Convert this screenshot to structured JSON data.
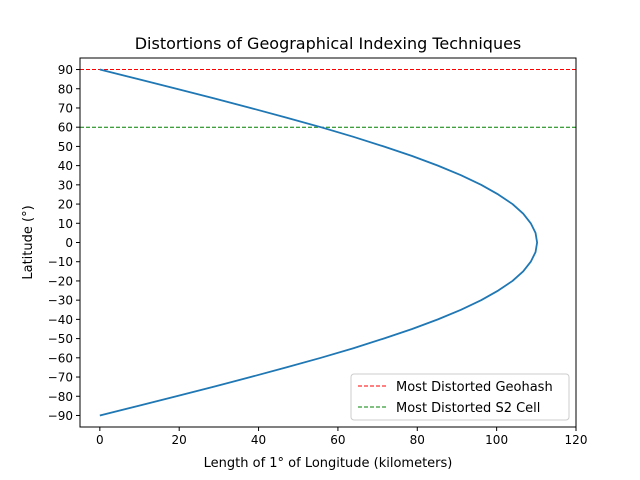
{
  "chart_data": {
    "type": "line",
    "title": "Distortions of Geographical Indexing Techniques",
    "xlabel": "Length of 1° of Longitude (kilometers)",
    "ylabel": "Latitude (°)",
    "xlim": [
      -5,
      120
    ],
    "ylim": [
      -96,
      96
    ],
    "xticks": [
      0,
      20,
      40,
      60,
      80,
      100,
      120
    ],
    "yticks": [
      -90,
      -80,
      -70,
      -60,
      -50,
      -40,
      -30,
      -20,
      -10,
      0,
      10,
      20,
      30,
      40,
      50,
      60,
      70,
      80,
      90
    ],
    "grid": false,
    "series": [
      {
        "color": "#1f77b4",
        "style": "solid",
        "x": [
          0.0,
          9.7,
          19.3,
          28.8,
          38.0,
          47.0,
          55.7,
          63.9,
          71.5,
          78.7,
          85.2,
          91.0,
          96.1,
          100.4,
          104.0,
          106.7,
          108.6,
          109.8,
          110.2,
          109.8,
          108.6,
          106.7,
          104.0,
          100.4,
          96.1,
          91.0,
          85.2,
          78.7,
          71.5,
          63.9,
          55.7,
          47.0,
          38.0,
          28.8,
          19.3,
          9.7,
          0.0
        ],
        "y": [
          -90,
          -85,
          -80,
          -75,
          -70,
          -65,
          -60,
          -55,
          -50,
          -45,
          -40,
          -35,
          -30,
          -25,
          -20,
          -15,
          -10,
          -5,
          0,
          5,
          10,
          15,
          20,
          25,
          30,
          35,
          40,
          45,
          50,
          55,
          60,
          65,
          70,
          75,
          80,
          85,
          90
        ]
      }
    ],
    "hlines": [
      {
        "name": "Most Distorted Geohash",
        "y": 90,
        "color": "#ff0000",
        "style": "dashed"
      },
      {
        "name": "Most Distorted S2 Cell",
        "y": 60,
        "color": "#008000",
        "style": "dashed"
      }
    ],
    "legend": "lower-right"
  }
}
